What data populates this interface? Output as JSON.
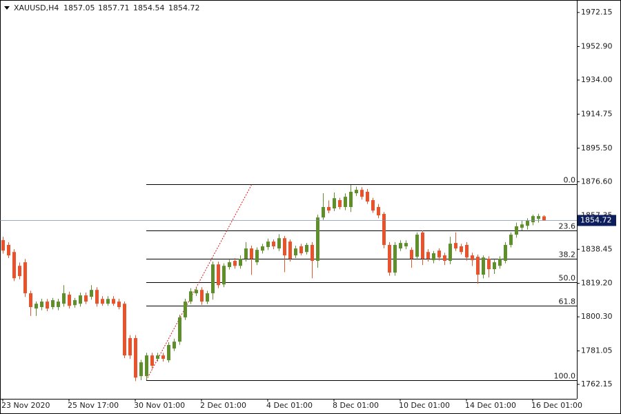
{
  "chart_data": {
    "type": "candlestick",
    "symbol": "XAUUSD,H4",
    "up_color": "#5f8f2b",
    "down_color": "#e8532c",
    "categories": [
      "23 Nov 2020",
      null,
      null,
      null,
      null,
      null,
      null,
      null,
      null,
      null,
      null,
      null,
      "25 Nov 17:00",
      null,
      null,
      null,
      null,
      null,
      null,
      null,
      null,
      null,
      null,
      null,
      "30 Nov 01:00",
      null,
      null,
      null,
      null,
      null,
      null,
      null,
      null,
      null,
      null,
      null,
      "2 Dec 01:00",
      null,
      null,
      null,
      null,
      null,
      null,
      null,
      null,
      null,
      null,
      null,
      "4 Dec 01:00",
      null,
      null,
      null,
      null,
      null,
      null,
      null,
      null,
      null,
      null,
      null,
      "8 Dec 01:00",
      null,
      null,
      null,
      null,
      null,
      null,
      null,
      null,
      null,
      null,
      null,
      "10 Dec 01:00",
      null,
      null,
      null,
      null,
      null,
      null,
      null,
      null,
      null,
      null,
      null,
      "14 Dec 01:00",
      null,
      null,
      null,
      null,
      null,
      null,
      null,
      null,
      null,
      null,
      null,
      "16 Dec 01:00",
      null,
      null
    ],
    "open": [
      1843.6,
      1840.9,
      1836.9,
      1829.1,
      1831.1,
      1813.6,
      1805.0,
      1805.8,
      1808.9,
      1805.8,
      1805.8,
      1807.7,
      1812.8,
      1806.9,
      1807.7,
      1812.4,
      1811.6,
      1815.5,
      1810.4,
      1807.7,
      1810.4,
      1808.9,
      1807.7,
      1788.3,
      1788.3,
      1766.8,
      1766.8,
      1778.5,
      1776.6,
      1778.5,
      1775.8,
      1782.4,
      1786.3,
      1800.0,
      1808.9,
      1813.6,
      1815.5,
      1808.9,
      1813.6,
      1829.9,
      1818.6,
      1828.4,
      1831.9,
      1829.1,
      1833.1,
      1838.9,
      1831.1,
      1837.7,
      1839.7,
      1842.8,
      1838.9,
      1844.7,
      1842.8,
      1835.0,
      1840.1,
      1836.9,
      1840.9,
      1831.9,
      1856.4,
      1862.3,
      1861.5,
      1866.2,
      1862.3,
      1862.3,
      1870.1,
      1872.0,
      1870.9,
      1866.2,
      1862.3,
      1858.4,
      1840.9,
      1825.3,
      1838.9,
      1840.1,
      1838.1,
      1834.2,
      1847.9,
      1836.9,
      1832.3,
      1837.7,
      1835.0,
      1831.9,
      1842.0,
      1840.1,
      1840.9,
      1835.0,
      1834.2,
      1824.1,
      1833.1,
      1827.2,
      1829.1,
      1831.9,
      1840.9,
      1846.7,
      1850.6,
      1851.7,
      1853.7,
      1855.6,
      1857.05
    ],
    "high": [
      1845.5,
      1842.4,
      1838.5,
      1831.0,
      1833.0,
      1815.0,
      1809.0,
      1810.5,
      1810.4,
      1811.0,
      1810.5,
      1818.2,
      1814.5,
      1811.0,
      1814.0,
      1814.0,
      1818.2,
      1817.0,
      1812.0,
      1812.0,
      1812.0,
      1810.5,
      1809.0,
      1790.0,
      1790.0,
      1776.0,
      1780.0,
      1780.0,
      1780.0,
      1780.0,
      1786.0,
      1788.0,
      1801.5,
      1810.5,
      1816.5,
      1817.0,
      1817.0,
      1815.0,
      1831.5,
      1831.5,
      1830.5,
      1832.5,
      1833.5,
      1835.0,
      1842.5,
      1840.5,
      1839.5,
      1841.5,
      1844.5,
      1844.0,
      1847.0,
      1846.0,
      1844.0,
      1840.5,
      1841.5,
      1842.0,
      1842.5,
      1858.0,
      1870.1,
      1866.0,
      1870.5,
      1867.5,
      1870.0,
      1874.8,
      1873.8,
      1873.5,
      1872.5,
      1867.5,
      1864.0,
      1859.5,
      1842.5,
      1842.5,
      1843.5,
      1843.5,
      1839.5,
      1848.0,
      1849.0,
      1838.5,
      1837.5,
      1839.0,
      1836.5,
      1845.5,
      1848.0,
      1841.5,
      1842.5,
      1836.5,
      1835.5,
      1835.0,
      1834.5,
      1832.5,
      1834.5,
      1842.5,
      1848.0,
      1853.5,
      1854.5,
      1856.0,
      1858.0,
      1858.5,
      1857.71
    ],
    "low": [
      1836.0,
      1833.5,
      1820.5,
      1821.5,
      1811.5,
      1800.8,
      1800.8,
      1804.0,
      1803.5,
      1804.5,
      1804.0,
      1806.0,
      1805.0,
      1805.5,
      1806.0,
      1807.5,
      1810.0,
      1806.0,
      1806.5,
      1806.5,
      1806.5,
      1804.5,
      1777.0,
      1776.5,
      1764.0,
      1764.5,
      1764.5,
      1771.0,
      1775.0,
      1775.0,
      1774.5,
      1781.0,
      1784.5,
      1798.5,
      1807.5,
      1812.0,
      1807.0,
      1807.5,
      1810.0,
      1816.5,
      1817.0,
      1827.0,
      1827.5,
      1827.5,
      1831.5,
      1824.0,
      1829.5,
      1836.0,
      1838.0,
      1838.5,
      1837.5,
      1825.5,
      1831.5,
      1833.5,
      1835.0,
      1835.5,
      1822.1,
      1828.0,
      1855.0,
      1858.8,
      1860.0,
      1861.0,
      1860.5,
      1859.5,
      1868.5,
      1866.5,
      1864.0,
      1859.0,
      1856.0,
      1839.0,
      1823.5,
      1823.5,
      1837.5,
      1838.5,
      1828.0,
      1832.5,
      1829.5,
      1831.5,
      1830.5,
      1832.0,
      1829.5,
      1830.0,
      1837.5,
      1835.5,
      1832.0,
      1829.0,
      1819.0,
      1822.0,
      1822.5,
      1824.5,
      1827.5,
      1830.5,
      1839.5,
      1845.0,
      1849.0,
      1849.5,
      1852.0,
      1853.5,
      1854.54
    ],
    "close": [
      1837.7,
      1835.0,
      1822.1,
      1823.3,
      1813.6,
      1805.8,
      1807.7,
      1808.9,
      1805.0,
      1809.7,
      1808.9,
      1813.6,
      1806.5,
      1809.7,
      1812.4,
      1808.9,
      1815.5,
      1807.7,
      1807.7,
      1810.4,
      1807.7,
      1805.8,
      1778.5,
      1778.5,
      1766.0,
      1774.6,
      1778.5,
      1772.7,
      1778.5,
      1776.6,
      1784.4,
      1786.3,
      1800.0,
      1808.9,
      1814.7,
      1815.5,
      1808.9,
      1813.6,
      1829.9,
      1818.2,
      1829.1,
      1831.1,
      1829.1,
      1833.1,
      1838.9,
      1833.1,
      1838.1,
      1840.1,
      1842.8,
      1840.1,
      1844.7,
      1835.0,
      1833.1,
      1838.9,
      1836.2,
      1840.9,
      1831.9,
      1856.4,
      1862.3,
      1860.3,
      1867.3,
      1862.3,
      1868.1,
      1870.9,
      1872.0,
      1868.1,
      1865.4,
      1860.3,
      1857.6,
      1840.9,
      1825.3,
      1840.9,
      1842.0,
      1842.0,
      1833.1,
      1846.7,
      1833.1,
      1833.1,
      1836.2,
      1833.8,
      1831.9,
      1841.6,
      1838.9,
      1836.9,
      1833.8,
      1832.3,
      1824.1,
      1833.8,
      1827.2,
      1831.1,
      1833.1,
      1840.9,
      1846.7,
      1851.4,
      1852.5,
      1854.5,
      1857.2,
      1857.2,
      1854.72
    ],
    "ylim": [
      1754.0,
      1979.2
    ],
    "yticks": [
      1972.15,
      {
        "value": 1952.9,
        "label": "1952.90"
      },
      {
        "value": 1934,
        "label": "1934.00"
      },
      1914.75,
      {
        "value": 1895.5,
        "label": "1895.50"
      },
      {
        "value": 1876.6,
        "label": "1876.60"
      },
      1857.35,
      1838.45,
      {
        "value": 1819.2,
        "label": "1819.20"
      },
      {
        "value": 1800.3,
        "label": "1800.30"
      },
      1781.05,
      1762.15
    ],
    "fibonacci": [
      {
        "value": 1875.2,
        "label": "0.0"
      },
      {
        "value": 1849.0,
        "label": "23.6"
      },
      {
        "value": 1833.0,
        "label": "38.2"
      },
      {
        "value": 1819.8,
        "label": "50.0"
      },
      {
        "value": 1806.6,
        "label": "61.8"
      },
      {
        "value": 1764.5,
        "label": "100.0"
      }
    ]
  }
}
